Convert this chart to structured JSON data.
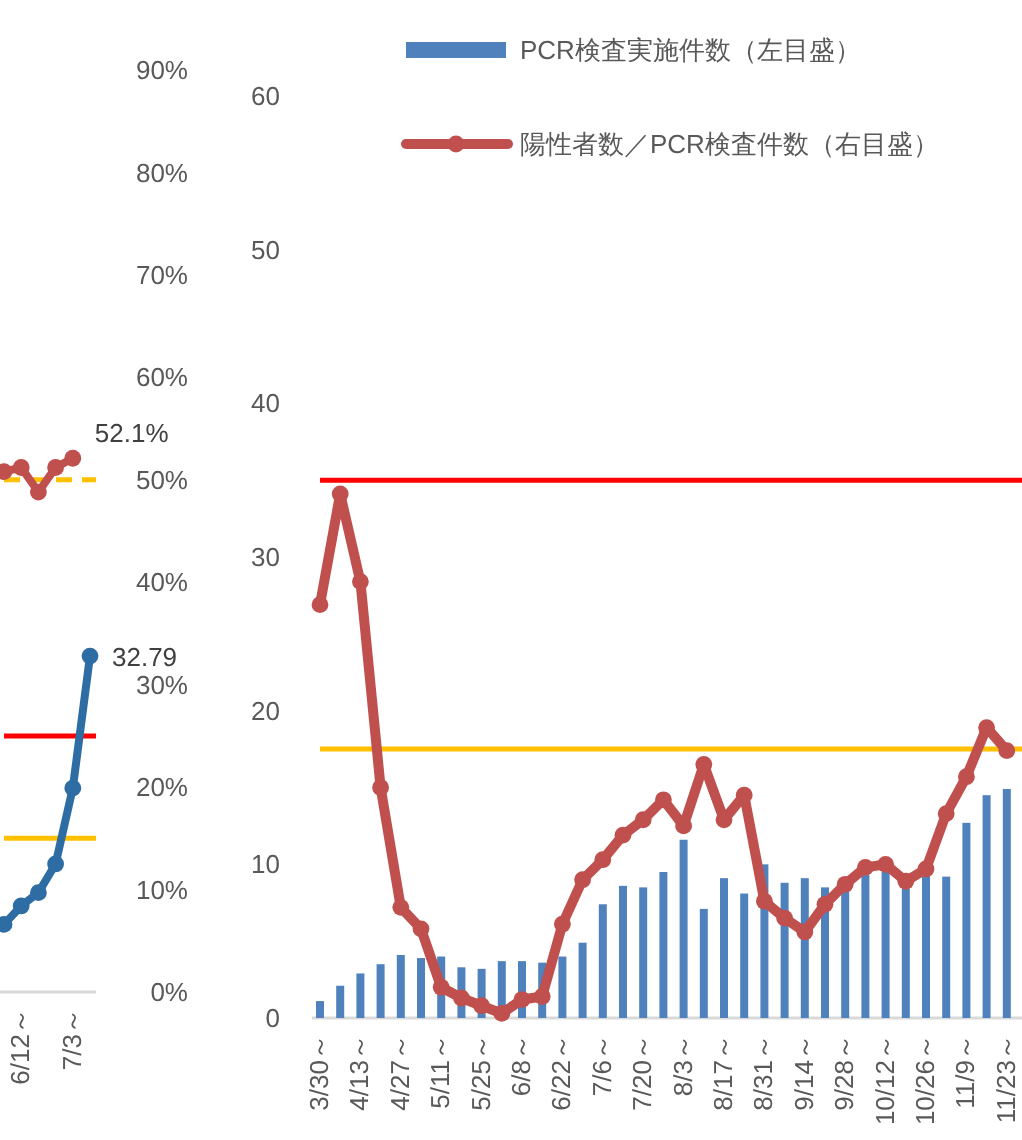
{
  "chart_data": [
    {
      "type": "line",
      "categories": [
        null,
        "6/12～",
        null,
        null,
        "7/3～",
        null
      ],
      "ylim": [
        0,
        90
      ],
      "yticks": [
        {
          "value": 0,
          "label": "0%"
        },
        {
          "value": 10,
          "label": "10%"
        },
        {
          "value": 20,
          "label": "20%"
        },
        {
          "value": 30,
          "label": "30%"
        },
        {
          "value": 40,
          "label": "40%"
        },
        {
          "value": 50,
          "label": "50%"
        },
        {
          "value": 60,
          "label": "60%"
        },
        {
          "value": 70,
          "label": "70%"
        },
        {
          "value": 80,
          "label": "80%"
        },
        {
          "value": 90,
          "label": "90%"
        }
      ],
      "marker": "circle",
      "grid": false,
      "series": [
        {
          "color": "#c0504d",
          "values": [
            50.8,
            51.2,
            48.8,
            51.2,
            52.1,
            null
          ],
          "value_labels": [
            null,
            null,
            null,
            null,
            "52.1%",
            null
          ]
        },
        {
          "color": "#2e6da4",
          "values": [
            6.6,
            8.4,
            9.7,
            12.5,
            19.9,
            32.79
          ],
          "value_labels": [
            null,
            null,
            null,
            null,
            null,
            "32.79"
          ]
        }
      ],
      "ref_lines": [
        {
          "axis": "y",
          "value": 25,
          "color": "#ff0000"
        },
        {
          "axis": "y",
          "value": 15,
          "color": "#ffc000"
        },
        {
          "axis": "y",
          "value": 50,
          "color": "#ffc000",
          "line_style": "dashed"
        }
      ]
    },
    {
      "type": "bar",
      "categories": [
        "3/30～",
        null,
        "4/13～",
        null,
        "4/27～",
        null,
        "5/11～",
        null,
        "5/25～",
        null,
        "6/8～",
        null,
        "6/22～",
        null,
        "7/6～",
        null,
        "7/20～",
        null,
        "8/3～",
        null,
        "8/17～",
        null,
        "8/31～",
        null,
        "9/14～",
        null,
        "9/28～",
        null,
        "10/12～",
        null,
        "10/26～",
        null,
        "11/9～",
        null,
        "11/23～"
      ],
      "ylim": [
        0,
        60
      ],
      "yticks": [
        0,
        10,
        20,
        30,
        40,
        50,
        60
      ],
      "legend": "top",
      "grid": false,
      "series": [
        {
          "name": "PCR検査実施件数（左目盛）",
          "color": "#4f81bd",
          "values": [
            1.1,
            2.1,
            2.9,
            3.5,
            4.1,
            3.9,
            4.0,
            3.3,
            3.2,
            3.7,
            3.7,
            3.6,
            4.0,
            4.9,
            7.4,
            8.6,
            8.5,
            9.5,
            11.6,
            7.1,
            9.1,
            8.1,
            10.0,
            8.8,
            9.1,
            8.5,
            8.3,
            9.3,
            9.5,
            8.4,
            9.4,
            9.2,
            12.7,
            14.5,
            14.9
          ]
        },
        {
          "type": "line",
          "marker": "circle",
          "name": "陽性者数／PCR検査件数（右目盛）",
          "color": "#c0504d",
          "values": [
            26.9,
            34.1,
            28.4,
            15.0,
            7.2,
            5.8,
            2.0,
            1.3,
            0.8,
            0.3,
            1.2,
            1.4,
            6.1,
            9.0,
            10.3,
            11.9,
            12.9,
            14.2,
            12.5,
            16.5,
            12.9,
            14.5,
            7.6,
            6.5,
            5.6,
            7.4,
            8.7,
            9.8,
            10.0,
            8.9,
            9.7,
            13.3,
            15.7,
            18.9,
            17.4
          ]
        }
      ],
      "ref_lines": [
        {
          "axis": "y",
          "value": 35,
          "color": "#ff0000"
        },
        {
          "axis": "y",
          "value": 17.5,
          "color": "#ffc000"
        }
      ]
    }
  ]
}
